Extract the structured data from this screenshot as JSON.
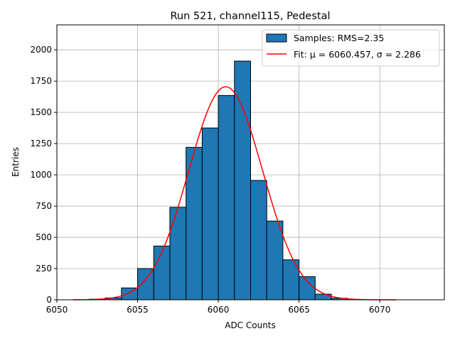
{
  "chart_data": {
    "type": "bar",
    "title": "Run 521, channel115, Pedestal",
    "xlabel": "ADC Counts",
    "ylabel": "Entries",
    "xlim": [
      6050,
      6074
    ],
    "ylim": [
      0,
      2200
    ],
    "xticks": [
      6050,
      6055,
      6060,
      6065,
      6070
    ],
    "yticks": [
      0,
      250,
      500,
      750,
      1000,
      1250,
      1500,
      1750,
      2000
    ],
    "grid": true,
    "legend_position": "top-right",
    "bar_color": "#1f77b4",
    "fit_color": "#ff0000",
    "bins": [
      {
        "x0": 6052,
        "x1": 6053,
        "count": 5
      },
      {
        "x0": 6053,
        "x1": 6054,
        "count": 15
      },
      {
        "x0": 6054,
        "x1": 6055,
        "count": 95
      },
      {
        "x0": 6055,
        "x1": 6056,
        "count": 250
      },
      {
        "x0": 6056,
        "x1": 6057,
        "count": 430
      },
      {
        "x0": 6057,
        "x1": 6058,
        "count": 740
      },
      {
        "x0": 6058,
        "x1": 6059,
        "count": 1220
      },
      {
        "x0": 6059,
        "x1": 6060,
        "count": 1375
      },
      {
        "x0": 6060,
        "x1": 6061,
        "count": 1635
      },
      {
        "x0": 6061,
        "x1": 6062,
        "count": 1910
      },
      {
        "x0": 6062,
        "x1": 6063,
        "count": 955
      },
      {
        "x0": 6063,
        "x1": 6064,
        "count": 630
      },
      {
        "x0": 6064,
        "x1": 6065,
        "count": 320
      },
      {
        "x0": 6065,
        "x1": 6066,
        "count": 185
      },
      {
        "x0": 6066,
        "x1": 6067,
        "count": 45
      },
      {
        "x0": 6067,
        "x1": 6068,
        "count": 12
      },
      {
        "x0": 6068,
        "x1": 6069,
        "count": 3
      }
    ],
    "fit": {
      "mu": 6060.457,
      "sigma": 2.286,
      "peak": 1705,
      "x_range": [
        6051,
        6071
      ]
    },
    "legend": {
      "samples_label": "Samples: RMS=2.35",
      "fit_label": "Fit: μ = 6060.457, σ = 2.286"
    }
  }
}
